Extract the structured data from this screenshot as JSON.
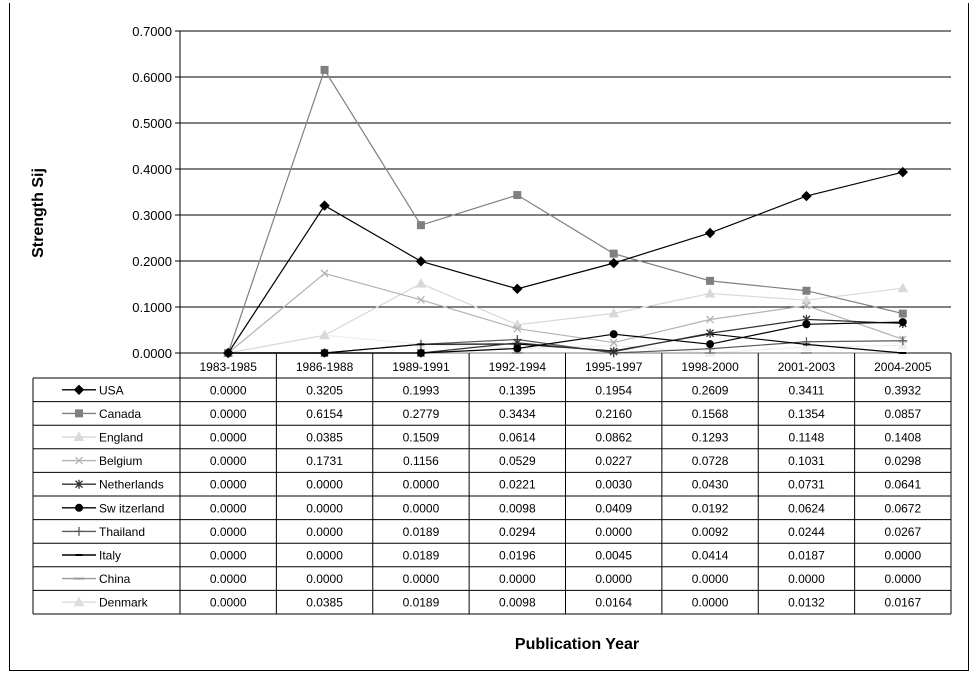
{
  "chart_data": {
    "type": "line",
    "xlabel": "Publication Year",
    "ylabel": "Strength Sij",
    "ylim": [
      0,
      0.7
    ],
    "yticks": [
      "0.0000",
      "0.1000",
      "0.2000",
      "0.3000",
      "0.4000",
      "0.5000",
      "0.6000",
      "0.7000"
    ],
    "grid": true,
    "legend": "data-table",
    "categories": [
      "1983-1985",
      "1986-1988",
      "1989-1991",
      "1992-1994",
      "1995-1997",
      "1998-2000",
      "2001-2003",
      "2004-2005"
    ],
    "series": [
      {
        "name": "USA",
        "marker": "diamond",
        "color": "#000000",
        "labels": [
          "0.0000",
          "0.3205",
          "0.1993",
          "0.1395",
          "0.1954",
          "0.2609",
          "0.3411",
          "0.3932"
        ],
        "values": [
          0.0,
          0.3205,
          0.1993,
          0.1395,
          0.1954,
          0.2609,
          0.3411,
          0.3932
        ]
      },
      {
        "name": "Canada",
        "marker": "square",
        "color": "#808080",
        "labels": [
          "0.0000",
          "0.6154",
          "0.2779",
          "0.3434",
          "0.2160",
          "0.1568",
          "0.1354",
          "0.0857"
        ],
        "values": [
          0.0,
          0.6154,
          0.2779,
          0.3434,
          0.216,
          0.1568,
          0.1354,
          0.0857
        ]
      },
      {
        "name": "England",
        "marker": "triangle",
        "color": "#d9d9d9",
        "labels": [
          "0.0000",
          "0.0385",
          "0.1509",
          "0.0614",
          "0.0862",
          "0.1293",
          "0.1148",
          "0.1408"
        ],
        "values": [
          0.0,
          0.0385,
          0.1509,
          0.0614,
          0.0862,
          0.1293,
          0.1148,
          0.1408
        ]
      },
      {
        "name": "Belgium",
        "marker": "x",
        "color": "#b3b3b3",
        "labels": [
          "0.0000",
          "0.1731",
          "0.1156",
          "0.0529",
          "0.0227",
          "0.0728",
          "0.1031",
          "0.0298"
        ],
        "values": [
          0.0,
          0.1731,
          0.1156,
          0.0529,
          0.0227,
          0.0728,
          0.1031,
          0.0298
        ]
      },
      {
        "name": "Netherlands",
        "marker": "star",
        "color": "#333333",
        "labels": [
          "0.0000",
          "0.0000",
          "0.0000",
          "0.0221",
          "0.0030",
          "0.0430",
          "0.0731",
          "0.0641"
        ],
        "values": [
          0.0,
          0.0,
          0.0,
          0.0221,
          0.003,
          0.043,
          0.0731,
          0.0641
        ]
      },
      {
        "name": "Sw itzerland",
        "marker": "circle",
        "color": "#000000",
        "labels": [
          "0.0000",
          "0.0000",
          "0.0000",
          "0.0098",
          "0.0409",
          "0.0192",
          "0.0624",
          "0.0672"
        ],
        "values": [
          0.0,
          0.0,
          0.0,
          0.0098,
          0.0409,
          0.0192,
          0.0624,
          0.0672
        ]
      },
      {
        "name": "Thailand",
        "marker": "plus",
        "color": "#595959",
        "labels": [
          "0.0000",
          "0.0000",
          "0.0189",
          "0.0294",
          "0.0000",
          "0.0092",
          "0.0244",
          "0.0267"
        ],
        "values": [
          0.0,
          0.0,
          0.0189,
          0.0294,
          0.0,
          0.0092,
          0.0244,
          0.0267
        ]
      },
      {
        "name": "Italy",
        "marker": "dash",
        "color": "#000000",
        "labels": [
          "0.0000",
          "0.0000",
          "0.0189",
          "0.0196",
          "0.0045",
          "0.0414",
          "0.0187",
          "0.0000"
        ],
        "values": [
          0.0,
          0.0,
          0.0189,
          0.0196,
          0.0045,
          0.0414,
          0.0187,
          0.0
        ]
      },
      {
        "name": "China",
        "marker": "hline",
        "color": "#999999",
        "labels": [
          "0.0000",
          "0.0000",
          "0.0000",
          "0.0000",
          "0.0000",
          "0.0000",
          "0.0000",
          "0.0000"
        ],
        "values": [
          0,
          0,
          0,
          0,
          0,
          0,
          0,
          0
        ]
      },
      {
        "name": "Denmark",
        "marker": "triangle",
        "color": "#eeeeee",
        "labels": [
          "0.0000",
          "0.0385",
          "0.0189",
          "0.0098",
          "0.0164",
          "0.0000",
          "0.0132",
          "0.0167"
        ],
        "values": [
          0.0,
          0.0385,
          0.0189,
          0.0098,
          0.0164,
          0.0,
          0.0132,
          0.0167
        ]
      }
    ]
  }
}
